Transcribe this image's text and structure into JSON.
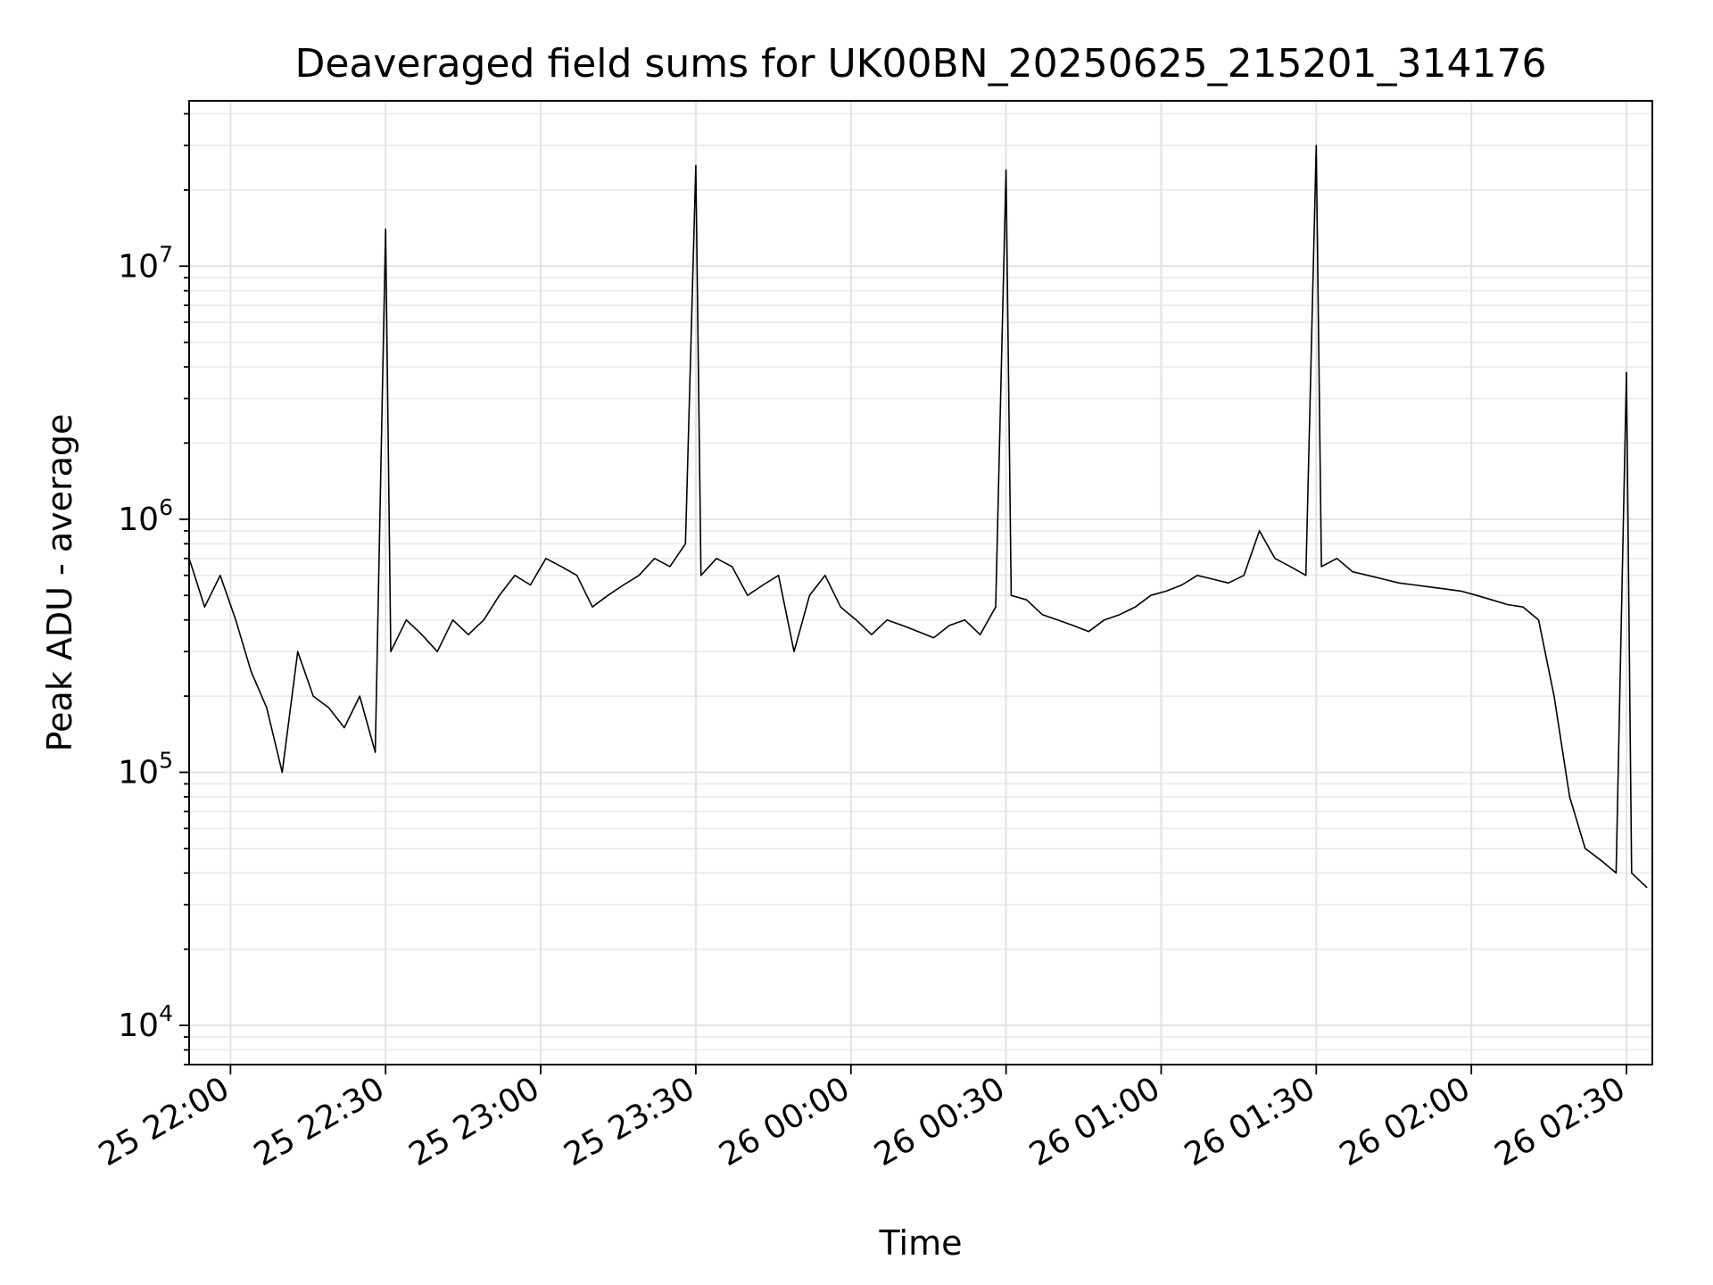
{
  "chart_data": {
    "type": "line",
    "title": "Deaveraged field sums for UK00BN_20250625_215201_314176",
    "xlabel": "Time",
    "ylabel": "Peak ADU - average",
    "yscale": "log",
    "ylim": [
      7000,
      45000000
    ],
    "xlim": [
      "2025-06-25 21:52",
      "2025-06-26 02:35"
    ],
    "grid": "on (major and minor)",
    "line_color": "#000000",
    "x_ticks": [
      {
        "t": "2025-06-25 22:00",
        "label": "25 22:00"
      },
      {
        "t": "2025-06-25 22:30",
        "label": "25 22:30"
      },
      {
        "t": "2025-06-25 23:00",
        "label": "25 23:00"
      },
      {
        "t": "2025-06-25 23:30",
        "label": "25 23:30"
      },
      {
        "t": "2025-06-26 00:00",
        "label": "26 00:00"
      },
      {
        "t": "2025-06-26 00:30",
        "label": "26 00:30"
      },
      {
        "t": "2025-06-26 01:00",
        "label": "26 01:00"
      },
      {
        "t": "2025-06-26 01:30",
        "label": "26 01:30"
      },
      {
        "t": "2025-06-26 02:00",
        "label": "26 02:00"
      },
      {
        "t": "2025-06-26 02:30",
        "label": "26 02:30"
      }
    ],
    "y_ticks": [
      {
        "value": 10000,
        "base": "10",
        "exp": "4"
      },
      {
        "value": 100000,
        "base": "10",
        "exp": "5"
      },
      {
        "value": 1000000,
        "base": "10",
        "exp": "6"
      },
      {
        "value": 10000000,
        "base": "10",
        "exp": "7"
      }
    ],
    "series": [
      {
        "x": [
          "2025-06-25 21:52",
          "2025-06-25 21:55",
          "2025-06-25 21:58",
          "2025-06-25 22:01",
          "2025-06-25 22:04",
          "2025-06-25 22:07",
          "2025-06-25 22:10",
          "2025-06-25 22:13",
          "2025-06-25 22:16",
          "2025-06-25 22:19",
          "2025-06-25 22:22",
          "2025-06-25 22:25",
          "2025-06-25 22:28",
          "2025-06-25 22:30",
          "2025-06-25 22:31",
          "2025-06-25 22:34",
          "2025-06-25 22:37",
          "2025-06-25 22:40",
          "2025-06-25 22:43",
          "2025-06-25 22:46",
          "2025-06-25 22:49",
          "2025-06-25 22:52",
          "2025-06-25 22:55",
          "2025-06-25 22:58",
          "2025-06-25 23:01",
          "2025-06-25 23:04",
          "2025-06-25 23:07",
          "2025-06-25 23:10",
          "2025-06-25 23:13",
          "2025-06-25 23:16",
          "2025-06-25 23:19",
          "2025-06-25 23:22",
          "2025-06-25 23:25",
          "2025-06-25 23:28",
          "2025-06-25 23:30",
          "2025-06-25 23:31",
          "2025-06-25 23:34",
          "2025-06-25 23:37",
          "2025-06-25 23:40",
          "2025-06-25 23:43",
          "2025-06-25 23:46",
          "2025-06-25 23:49",
          "2025-06-25 23:52",
          "2025-06-25 23:55",
          "2025-06-25 23:58",
          "2025-06-26 00:01",
          "2025-06-26 00:04",
          "2025-06-26 00:07",
          "2025-06-26 00:10",
          "2025-06-26 00:13",
          "2025-06-26 00:16",
          "2025-06-26 00:19",
          "2025-06-26 00:22",
          "2025-06-26 00:25",
          "2025-06-26 00:28",
          "2025-06-26 00:30",
          "2025-06-26 00:31",
          "2025-06-26 00:34",
          "2025-06-26 00:37",
          "2025-06-26 00:40",
          "2025-06-26 00:43",
          "2025-06-26 00:46",
          "2025-06-26 00:49",
          "2025-06-26 00:52",
          "2025-06-26 00:55",
          "2025-06-26 00:58",
          "2025-06-26 01:01",
          "2025-06-26 01:04",
          "2025-06-26 01:07",
          "2025-06-26 01:10",
          "2025-06-26 01:13",
          "2025-06-26 01:16",
          "2025-06-26 01:19",
          "2025-06-26 01:22",
          "2025-06-26 01:25",
          "2025-06-26 01:28",
          "2025-06-26 01:30",
          "2025-06-26 01:31",
          "2025-06-26 01:34",
          "2025-06-26 01:37",
          "2025-06-26 01:40",
          "2025-06-26 01:43",
          "2025-06-26 01:46",
          "2025-06-26 01:49",
          "2025-06-26 01:52",
          "2025-06-26 01:55",
          "2025-06-26 01:58",
          "2025-06-26 02:01",
          "2025-06-26 02:04",
          "2025-06-26 02:07",
          "2025-06-26 02:10",
          "2025-06-26 02:13",
          "2025-06-26 02:16",
          "2025-06-26 02:19",
          "2025-06-26 02:22",
          "2025-06-26 02:25",
          "2025-06-26 02:28",
          "2025-06-26 02:30",
          "2025-06-26 02:31",
          "2025-06-26 02:34"
        ],
        "values": [
          700000,
          450000,
          600000,
          400000,
          250000,
          180000,
          100000,
          300000,
          200000,
          180000,
          150000,
          200000,
          120000,
          14000000,
          300000,
          400000,
          350000,
          300000,
          400000,
          350000,
          400000,
          500000,
          600000,
          550000,
          700000,
          650000,
          600000,
          450000,
          500000,
          550000,
          600000,
          700000,
          650000,
          800000,
          25000000,
          600000,
          700000,
          650000,
          500000,
          550000,
          600000,
          300000,
          500000,
          600000,
          450000,
          400000,
          350000,
          400000,
          380000,
          360000,
          340000,
          380000,
          400000,
          350000,
          450000,
          24000000,
          500000,
          480000,
          420000,
          400000,
          380000,
          360000,
          400000,
          420000,
          450000,
          500000,
          520000,
          550000,
          600000,
          580000,
          560000,
          600000,
          900000,
          700000,
          650000,
          600000,
          30000000,
          650000,
          700000,
          620000,
          600000,
          580000,
          560000,
          550000,
          540000,
          530000,
          520000,
          500000,
          480000,
          460000,
          450000,
          400000,
          200000,
          80000,
          50000,
          45000,
          40000,
          3800000,
          40000,
          35000
        ]
      }
    ]
  }
}
